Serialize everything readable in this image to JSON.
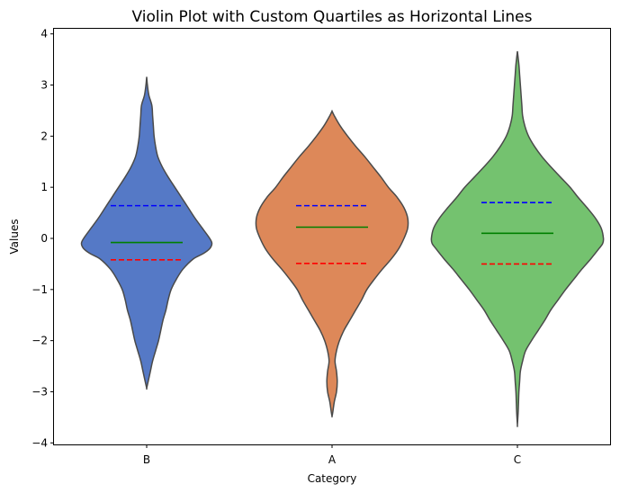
{
  "chart_data": {
    "type": "violin",
    "title": "Violin Plot with Custom Quartiles as Horizontal Lines",
    "xlabel": "Category",
    "ylabel": "Values",
    "ylim": [
      -4.03,
      4.1
    ],
    "yticks": [
      {
        "value": 4,
        "label": "4"
      },
      {
        "value": 3,
        "label": "3"
      },
      {
        "value": 2,
        "label": "2"
      },
      {
        "value": 1,
        "label": "1"
      },
      {
        "value": 0,
        "label": "0"
      },
      {
        "value": -1,
        "label": "−1"
      },
      {
        "value": -2,
        "label": "−2"
      },
      {
        "value": -3,
        "label": "−3"
      },
      {
        "value": -4,
        "label": "−4"
      }
    ],
    "categories": [
      "B",
      "A",
      "C"
    ],
    "grid": false,
    "quartile_colors": {
      "q1": "#ff0000",
      "median": "#008000",
      "q3": "#0000ff"
    },
    "violins": [
      {
        "category": "B",
        "color": "#5579c6",
        "q1": -0.42,
        "median": -0.08,
        "q3": 0.64,
        "profile": [
          [
            3.16,
            0.0
          ],
          [
            3.0,
            0.01
          ],
          [
            2.8,
            0.03
          ],
          [
            2.6,
            0.07
          ],
          [
            2.4,
            0.08
          ],
          [
            2.2,
            0.09
          ],
          [
            2.0,
            0.1
          ],
          [
            1.8,
            0.12
          ],
          [
            1.6,
            0.15
          ],
          [
            1.4,
            0.21
          ],
          [
            1.2,
            0.29
          ],
          [
            1.0,
            0.38
          ],
          [
            0.8,
            0.47
          ],
          [
            0.6,
            0.56
          ],
          [
            0.4,
            0.65
          ],
          [
            0.2,
            0.75
          ],
          [
            0.0,
            0.85
          ],
          [
            -0.1,
            0.88
          ],
          [
            -0.2,
            0.85
          ],
          [
            -0.3,
            0.76
          ],
          [
            -0.4,
            0.63
          ],
          [
            -0.6,
            0.49
          ],
          [
            -0.8,
            0.4
          ],
          [
            -1.0,
            0.33
          ],
          [
            -1.2,
            0.29
          ],
          [
            -1.4,
            0.26
          ],
          [
            -1.6,
            0.22
          ],
          [
            -1.8,
            0.19
          ],
          [
            -2.0,
            0.16
          ],
          [
            -2.2,
            0.12
          ],
          [
            -2.4,
            0.08
          ],
          [
            -2.6,
            0.05
          ],
          [
            -2.8,
            0.02
          ],
          [
            -2.93,
            0.0
          ]
        ]
      },
      {
        "category": "A",
        "color": "#dd8859",
        "q1": -0.49,
        "median": 0.22,
        "q3": 0.64,
        "profile": [
          [
            2.49,
            0.0
          ],
          [
            2.4,
            0.03
          ],
          [
            2.2,
            0.11
          ],
          [
            2.0,
            0.21
          ],
          [
            1.8,
            0.32
          ],
          [
            1.6,
            0.44
          ],
          [
            1.4,
            0.55
          ],
          [
            1.2,
            0.66
          ],
          [
            1.0,
            0.76
          ],
          [
            0.8,
            0.88
          ],
          [
            0.6,
            0.97
          ],
          [
            0.4,
            1.02
          ],
          [
            0.2,
            1.02
          ],
          [
            0.0,
            0.97
          ],
          [
            -0.2,
            0.9
          ],
          [
            -0.4,
            0.8
          ],
          [
            -0.6,
            0.68
          ],
          [
            -0.8,
            0.57
          ],
          [
            -1.0,
            0.47
          ],
          [
            -1.2,
            0.4
          ],
          [
            -1.4,
            0.32
          ],
          [
            -1.6,
            0.24
          ],
          [
            -1.8,
            0.16
          ],
          [
            -2.0,
            0.1
          ],
          [
            -2.2,
            0.06
          ],
          [
            -2.4,
            0.04
          ],
          [
            -2.6,
            0.06
          ],
          [
            -2.8,
            0.07
          ],
          [
            -3.0,
            0.06
          ],
          [
            -3.2,
            0.03
          ],
          [
            -3.4,
            0.01
          ],
          [
            -3.48,
            0.0
          ]
        ]
      },
      {
        "category": "C",
        "color": "#74c26f",
        "q1": -0.5,
        "median": 0.1,
        "q3": 0.7,
        "profile": [
          [
            3.66,
            0.0
          ],
          [
            3.4,
            0.02
          ],
          [
            3.2,
            0.03
          ],
          [
            3.0,
            0.04
          ],
          [
            2.8,
            0.05
          ],
          [
            2.6,
            0.06
          ],
          [
            2.4,
            0.07
          ],
          [
            2.2,
            0.1
          ],
          [
            2.0,
            0.15
          ],
          [
            1.8,
            0.23
          ],
          [
            1.6,
            0.33
          ],
          [
            1.4,
            0.45
          ],
          [
            1.2,
            0.58
          ],
          [
            1.0,
            0.71
          ],
          [
            0.8,
            0.82
          ],
          [
            0.6,
            0.94
          ],
          [
            0.4,
            1.05
          ],
          [
            0.2,
            1.13
          ],
          [
            0.0,
            1.16
          ],
          [
            -0.1,
            1.15
          ],
          [
            -0.2,
            1.1
          ],
          [
            -0.4,
            0.99
          ],
          [
            -0.6,
            0.87
          ],
          [
            -0.8,
            0.76
          ],
          [
            -1.0,
            0.65
          ],
          [
            -1.2,
            0.55
          ],
          [
            -1.4,
            0.45
          ],
          [
            -1.6,
            0.37
          ],
          [
            -1.8,
            0.28
          ],
          [
            -2.0,
            0.19
          ],
          [
            -2.2,
            0.11
          ],
          [
            -2.4,
            0.07
          ],
          [
            -2.6,
            0.04
          ],
          [
            -2.8,
            0.03
          ],
          [
            -3.0,
            0.02
          ],
          [
            -3.2,
            0.015
          ],
          [
            -3.4,
            0.01
          ],
          [
            -3.65,
            0.0
          ]
        ]
      }
    ]
  }
}
